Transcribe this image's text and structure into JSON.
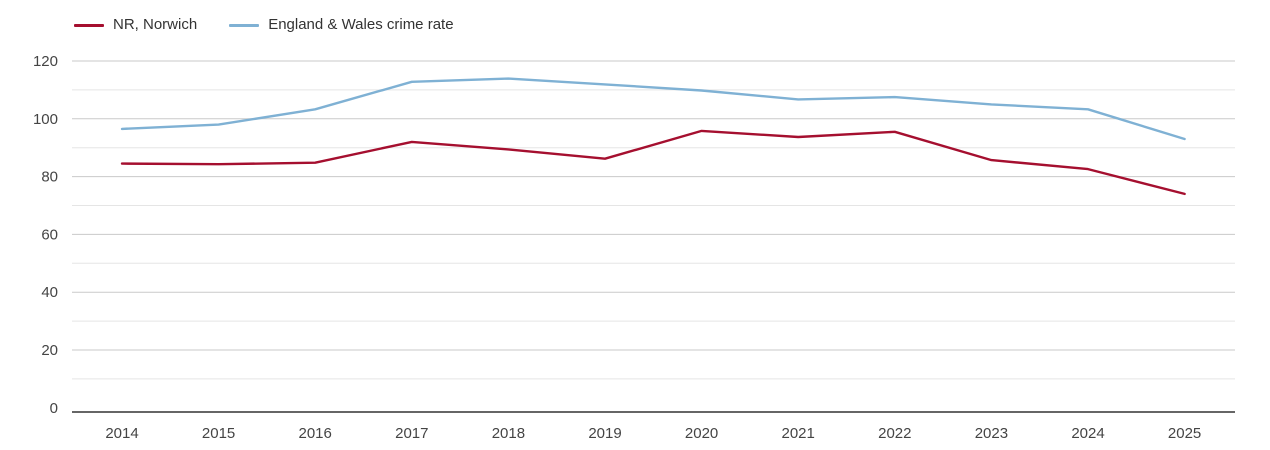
{
  "chart_data": {
    "type": "line",
    "x": [
      "2014",
      "2015",
      "2016",
      "2017",
      "2018",
      "2019",
      "2020",
      "2021",
      "2022",
      "2023",
      "2024",
      "2025"
    ],
    "series": [
      {
        "name": "NR, Norwich",
        "color": "#a50f2f",
        "values": [
          84.5,
          84.3,
          84.8,
          92.0,
          89.4,
          86.2,
          95.8,
          93.7,
          95.5,
          85.7,
          82.6,
          74.0
        ]
      },
      {
        "name": "England & Wales crime rate",
        "color": "#7fb1d4",
        "values": [
          96.5,
          98.0,
          103.3,
          112.8,
          113.9,
          111.9,
          109.8,
          106.7,
          107.5,
          105.0,
          103.3,
          93.0
        ]
      }
    ],
    "title": "",
    "xlabel": "",
    "ylabel": "",
    "ylim": [
      0,
      120
    ],
    "yticks": [
      0,
      20,
      40,
      60,
      80,
      100,
      120
    ],
    "minor_yticks": [
      10,
      30,
      50,
      70,
      90,
      110
    ],
    "grid": true,
    "legend_position": "top-left"
  },
  "styles": {
    "background": "#ffffff",
    "major_grid_color": "#cacaca",
    "minor_grid_color": "#e5e5e5",
    "axis_line_color": "#333333",
    "tick_label_color": "#444444",
    "legend_text_color": "#333333"
  }
}
